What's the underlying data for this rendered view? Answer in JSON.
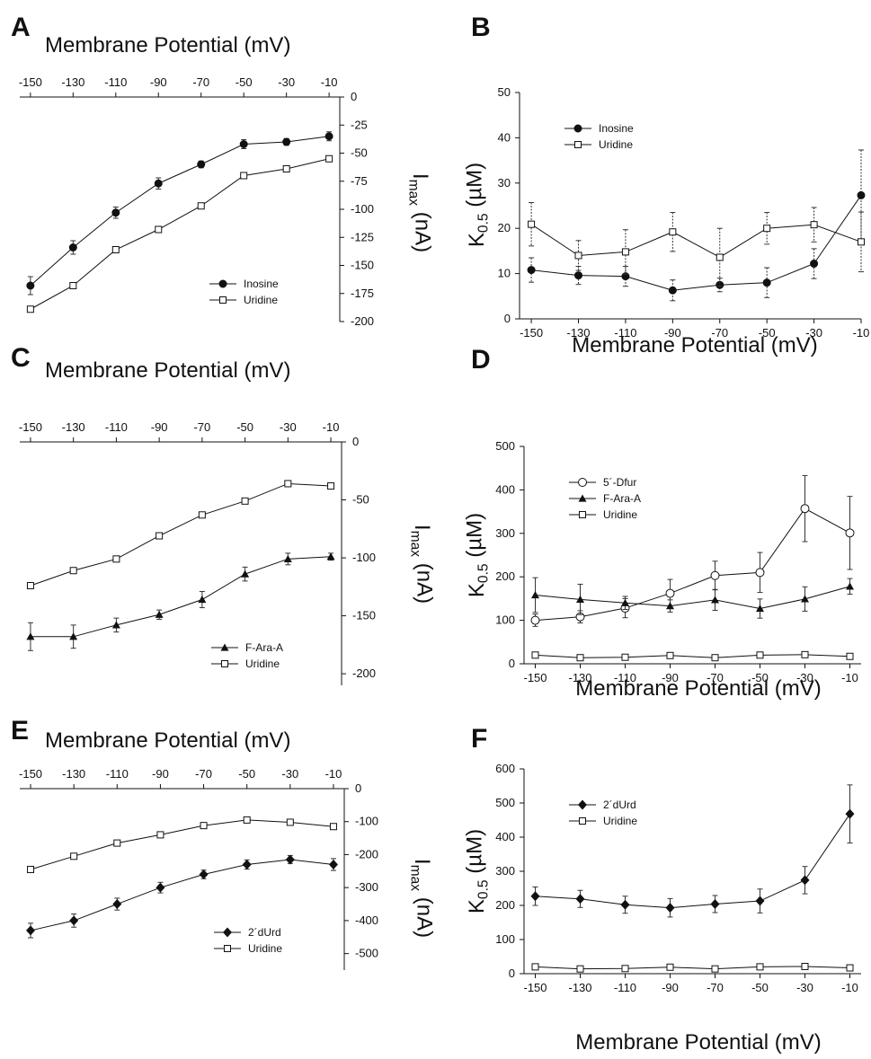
{
  "figure": {
    "panels": [
      {
        "letter": "A",
        "xlabel": "Membrane Potential (mV)",
        "ylabel": "Imax (nA)"
      },
      {
        "letter": "B",
        "xlabel": "Membrane Potential (mV)",
        "ylabel": "K0.5 (µM)"
      },
      {
        "letter": "C",
        "xlabel": "Membrane Potential (mV)",
        "ylabel": "Imax (nA)"
      },
      {
        "letter": "D",
        "xlabel": "Membrane Potential (mV)",
        "ylabel": "K0.5 (µM)"
      },
      {
        "letter": "E",
        "xlabel": "Membrane Potential (mV)",
        "ylabel": "Imax (nA)"
      },
      {
        "letter": "F",
        "xlabel": "Membrane Potential (mV)",
        "ylabel": "K0.5 (µM)"
      }
    ]
  },
  "chart_data": [
    {
      "panel": "A",
      "type": "line",
      "xlabel": "Membrane Potential (mV)",
      "ylabel": "Imax (nA)",
      "x": [
        -150,
        -130,
        -110,
        -90,
        -70,
        -50,
        -30,
        -10
      ],
      "xlim": [
        -155,
        -5
      ],
      "ylim": [
        -200,
        0
      ],
      "yticks": [
        0,
        -25,
        -50,
        -75,
        -100,
        -125,
        -150,
        -175,
        -200
      ],
      "x_axis_position": "top",
      "y_axis_position": "right",
      "legend_position": "lower-right",
      "series": [
        {
          "name": "Inosine",
          "marker": "filled-circle",
          "values": [
            -168,
            -134,
            -103,
            -77,
            -60,
            -42,
            -40,
            -35
          ],
          "errors": [
            8,
            6,
            5,
            5,
            3,
            4,
            3,
            4
          ]
        },
        {
          "name": "Uridine",
          "marker": "open-square",
          "values": [
            -189,
            -168,
            -136,
            -118,
            -97,
            -70,
            -64,
            -55
          ],
          "errors": [
            0,
            0,
            0,
            0,
            0,
            0,
            0,
            0
          ]
        }
      ]
    },
    {
      "panel": "B",
      "type": "line",
      "xlabel": "Membrane Potential (mV)",
      "ylabel": "K0.5 (µM)",
      "x": [
        -150,
        -130,
        -110,
        -90,
        -70,
        -50,
        -30,
        -10
      ],
      "xlim": [
        -155,
        -10
      ],
      "ylim": [
        0,
        50
      ],
      "yticks": [
        0,
        10,
        20,
        30,
        40,
        50
      ],
      "x_axis_position": "bottom",
      "y_axis_position": "left",
      "legend_position": "top-left",
      "series": [
        {
          "name": "Inosine",
          "marker": "filled-circle",
          "values": [
            10.8,
            9.6,
            9.4,
            6.3,
            7.5,
            8.0,
            12.2,
            27.3
          ],
          "errors": [
            2.7,
            2.0,
            2.2,
            2.3,
            1.5,
            3.3,
            3.3,
            10.0
          ]
        },
        {
          "name": "Uridine",
          "marker": "open-square",
          "values": [
            20.9,
            14.0,
            14.8,
            19.2,
            13.6,
            20.0,
            20.8,
            17.0
          ],
          "errors": [
            4.8,
            3.3,
            4.9,
            4.3,
            6.4,
            3.5,
            3.8,
            6.6
          ]
        }
      ]
    },
    {
      "panel": "C",
      "type": "line",
      "xlabel": "Membrane Potential (mV)",
      "ylabel": "Imax (nA)",
      "x": [
        -150,
        -130,
        -110,
        -90,
        -70,
        -50,
        -30,
        -10
      ],
      "xlim": [
        -155,
        -5
      ],
      "ylim": [
        -210,
        0
      ],
      "yticks": [
        0,
        -50,
        -100,
        -150,
        -200
      ],
      "x_axis_position": "top",
      "y_axis_position": "right",
      "legend_position": "lower-right",
      "series": [
        {
          "name": "F-Ara-A",
          "marker": "filled-triangle",
          "values": [
            -168,
            -168,
            -158,
            -149,
            -136,
            -114,
            -101,
            -99
          ],
          "errors": [
            12,
            10,
            6,
            4,
            7,
            6,
            5,
            3
          ]
        },
        {
          "name": "Uridine",
          "marker": "open-square",
          "values": [
            -124,
            -111,
            -101,
            -81,
            -63,
            -51,
            -36,
            -38
          ],
          "errors": [
            0,
            0,
            0,
            0,
            0,
            0,
            0,
            0
          ]
        }
      ]
    },
    {
      "panel": "D",
      "type": "line",
      "xlabel": "Membrane Potential (mV)",
      "ylabel": "K0.5 (µM)",
      "x": [
        -150,
        -130,
        -110,
        -90,
        -70,
        -50,
        -30,
        -10
      ],
      "xlim": [
        -155,
        -5
      ],
      "ylim": [
        0,
        500
      ],
      "yticks": [
        0,
        100,
        200,
        300,
        400,
        500
      ],
      "x_axis_position": "bottom",
      "y_axis_position": "left",
      "legend_position": "top-left",
      "series": [
        {
          "name": "5´-Dfur",
          "marker": "open-circle",
          "values": [
            100,
            108,
            128,
            162,
            203,
            210,
            357,
            301
          ],
          "errors": [
            14,
            14,
            22,
            32,
            33,
            46,
            76,
            84
          ]
        },
        {
          "name": "F-Ara-A",
          "marker": "filled-triangle",
          "values": [
            158,
            148,
            140,
            133,
            147,
            127,
            149,
            178
          ],
          "errors": [
            40,
            35,
            15,
            14,
            24,
            22,
            28,
            18
          ]
        },
        {
          "name": "Uridine",
          "marker": "open-square",
          "values": [
            20,
            14,
            15,
            19,
            14,
            20,
            21,
            17
          ],
          "errors": [
            0,
            0,
            0,
            0,
            0,
            0,
            0,
            0
          ]
        }
      ]
    },
    {
      "panel": "E",
      "type": "line",
      "xlabel": "Membrane Potential (mV)",
      "ylabel": "Imax (nA)",
      "x": [
        -150,
        -130,
        -110,
        -90,
        -70,
        -50,
        -30,
        -10
      ],
      "xlim": [
        -155,
        -5
      ],
      "ylim": [
        -550,
        0
      ],
      "yticks": [
        0,
        -100,
        -200,
        -300,
        -400,
        -500
      ],
      "x_axis_position": "top",
      "y_axis_position": "right",
      "legend_position": "lower-right",
      "series": [
        {
          "name": "2´dUrd",
          "marker": "filled-diamond",
          "values": [
            -430,
            -400,
            -350,
            -300,
            -260,
            -230,
            -215,
            -230
          ],
          "errors": [
            22,
            20,
            18,
            16,
            13,
            14,
            12,
            18
          ]
        },
        {
          "name": "Uridine",
          "marker": "open-square",
          "values": [
            -245,
            -205,
            -165,
            -140,
            -112,
            -95,
            -102,
            -115
          ],
          "errors": [
            0,
            0,
            0,
            0,
            0,
            0,
            0,
            0
          ]
        }
      ]
    },
    {
      "panel": "F",
      "type": "line",
      "xlabel": "Membrane Potential (mV)",
      "ylabel": "K0.5 (µM)",
      "x": [
        -150,
        -130,
        -110,
        -90,
        -70,
        -50,
        -30,
        -10
      ],
      "xlim": [
        -155,
        -5
      ],
      "ylim": [
        0,
        600
      ],
      "yticks": [
        0,
        100,
        200,
        300,
        400,
        500,
        600
      ],
      "x_axis_position": "bottom",
      "y_axis_position": "left",
      "legend_position": "top-left",
      "series": [
        {
          "name": "2´dUrd",
          "marker": "filled-diamond",
          "values": [
            227,
            219,
            202,
            193,
            204,
            213,
            274,
            468
          ],
          "errors": [
            27,
            25,
            25,
            27,
            25,
            35,
            40,
            85
          ]
        },
        {
          "name": "Uridine",
          "marker": "open-square",
          "values": [
            20,
            14,
            15,
            19,
            14,
            20,
            21,
            17
          ],
          "errors": [
            0,
            0,
            0,
            0,
            0,
            0,
            0,
            0
          ]
        }
      ]
    }
  ]
}
